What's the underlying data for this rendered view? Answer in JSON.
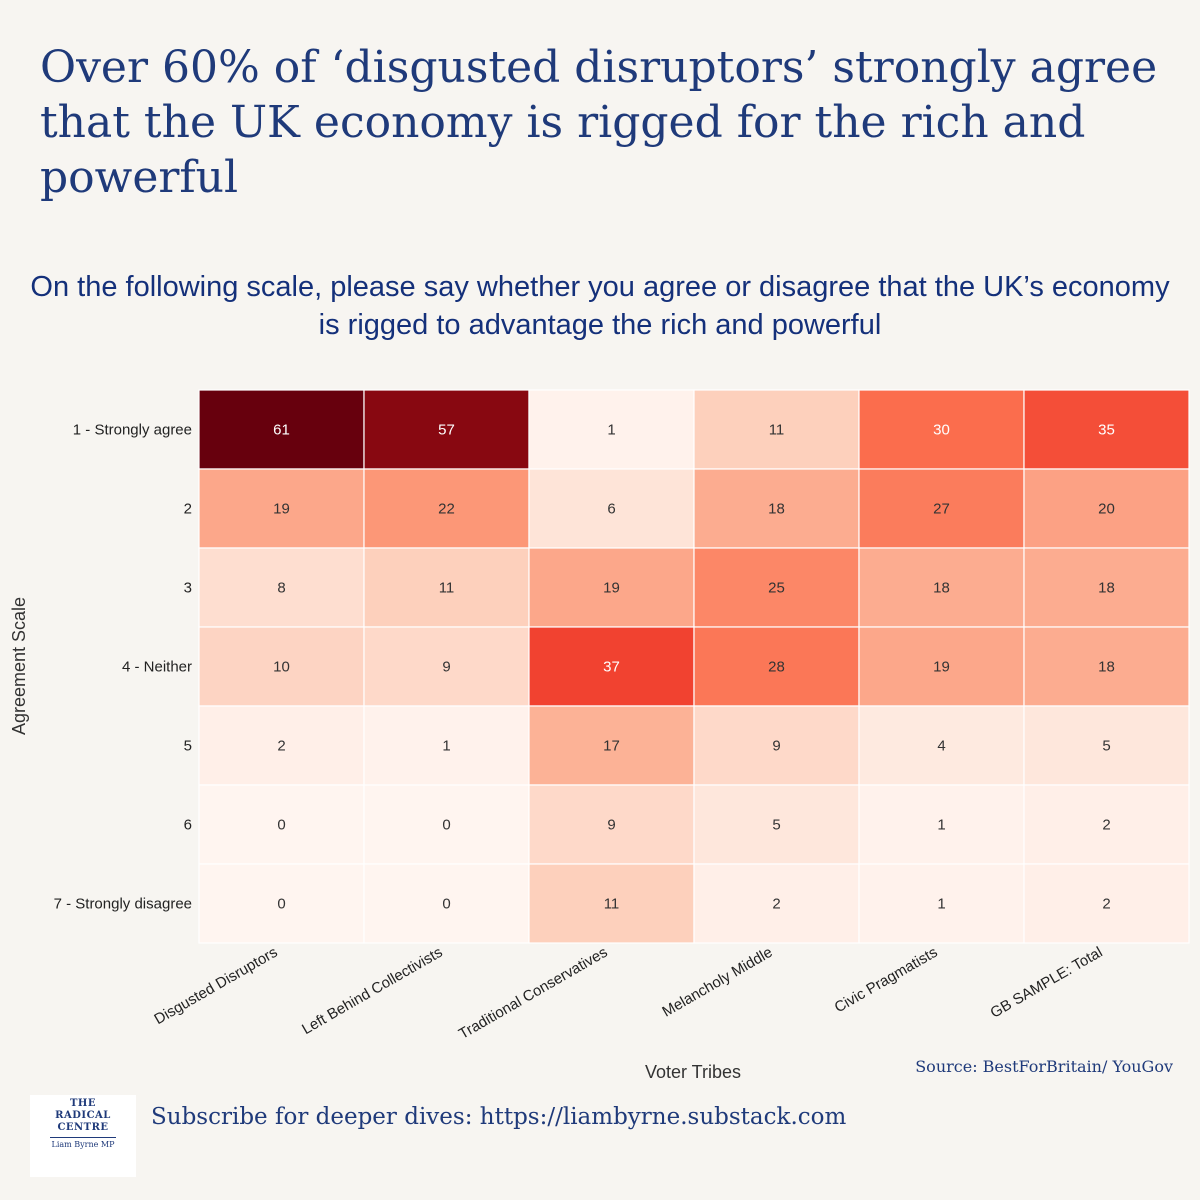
{
  "title": "Over 60% of ‘disgusted disruptors’ strongly agree that the UK economy is rigged for the rich and powerful",
  "subtitle": "On the following scale, please say whether you agree or disagree that the UK’s economy is rigged to advantage the rich and powerful",
  "chart_data": {
    "type": "heatmap",
    "xlabel": "Voter Tribes",
    "ylabel": "Agreement Scale",
    "columns": [
      "Disgusted Disruptors",
      "Left Behind Collectivists",
      "Traditional Conservatives",
      "Melancholy Middle",
      "Civic Pragmatists",
      "GB SAMPLE: Total"
    ],
    "rows": [
      "1 - Strongly agree",
      "2",
      "3",
      "4 - Neither",
      "5",
      "6",
      "7 - Strongly disagree"
    ],
    "values": [
      [
        61,
        57,
        1,
        11,
        30,
        35
      ],
      [
        19,
        22,
        6,
        18,
        27,
        20
      ],
      [
        8,
        11,
        19,
        25,
        18,
        18
      ],
      [
        10,
        9,
        37,
        28,
        19,
        18
      ],
      [
        2,
        1,
        17,
        9,
        4,
        5
      ],
      [
        0,
        0,
        9,
        5,
        1,
        2
      ],
      [
        0,
        0,
        11,
        2,
        1,
        2
      ]
    ],
    "value_range": [
      0,
      61
    ],
    "colormap": "Reds"
  },
  "source": "Source: BestForBritain/ YouGov",
  "footer": {
    "subscribe": "Subscribe for deeper dives: https://liambyrne.substack.com",
    "logo_line1": "THE",
    "logo_line2": "RADICAL",
    "logo_line3": "CENTRE",
    "logo_sub": "Liam Byrne MP"
  },
  "colors": {
    "title": "#1f3a7a",
    "subtitle": "#14307a",
    "background": "#f7f5f1"
  }
}
